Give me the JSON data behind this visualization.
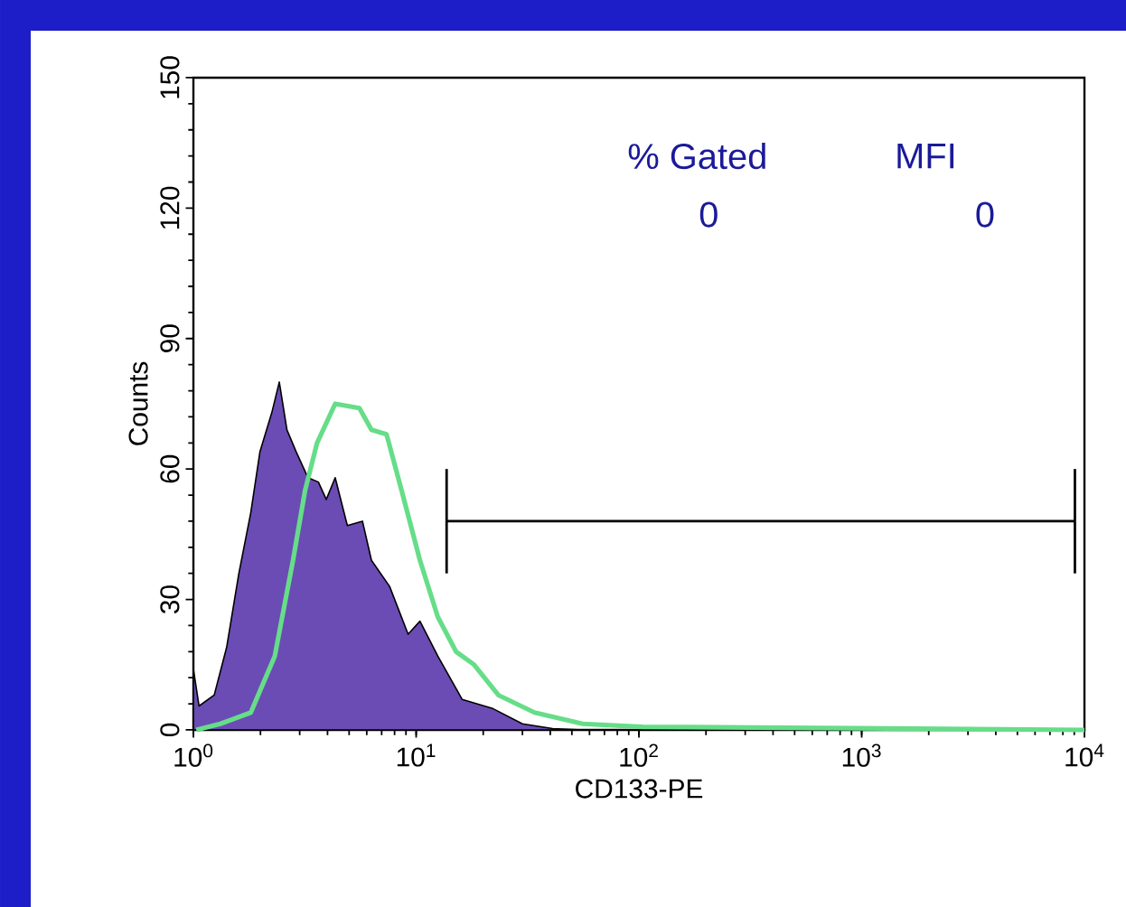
{
  "chart_data": {
    "type": "line",
    "xlabel": "CD133-PE",
    "ylabel": "Counts",
    "log": "x",
    "xlim": [
      1,
      10000
    ],
    "ylim": [
      0,
      150
    ],
    "xticks": [
      {
        "value": 1,
        "label": "10$^{0}$"
      },
      {
        "value": 10,
        "label": "10$^{1}$"
      },
      {
        "value": 100,
        "label": "10$^{2}$"
      },
      {
        "value": 1000,
        "label": "10$^{3}$"
      },
      {
        "value": 10000,
        "label": "10$^{4}$"
      }
    ],
    "yticks": [
      0,
      30,
      60,
      90,
      120,
      150
    ],
    "grid": false,
    "marker": "none",
    "annotations": [
      "% Gated",
      "MFI",
      "0",
      "0"
    ],
    "series": [
      {
        "type": "area",
        "color": "#6a4cb4",
        "x": [
          1.0,
          1.06,
          1.24,
          1.41,
          1.6,
          1.81,
          1.99,
          2.25,
          2.43,
          2.63,
          2.89,
          3.27,
          3.64,
          3.95,
          4.33,
          4.91,
          5.74,
          6.3,
          7.6,
          9.2,
          10.4,
          12.5,
          16.1,
          21.9,
          30,
          41,
          56
        ],
        "values": [
          14,
          5.5,
          8,
          19,
          36,
          50,
          64,
          73,
          80,
          69,
          64,
          58,
          57,
          53,
          58,
          47,
          48,
          39,
          33,
          22,
          25,
          17,
          7,
          5,
          1.4,
          0.3,
          0
        ]
      },
      {
        "color": "#66dd88",
        "x": [
          1.03,
          1.32,
          1.81,
          2.32,
          2.8,
          3.17,
          3.59,
          4.33,
          5.56,
          6.3,
          7.36,
          8.61,
          10.4,
          12.5,
          15.1,
          18.2,
          23.4,
          34,
          56,
          104,
          10000
        ],
        "values": [
          0,
          1.4,
          4,
          17,
          39,
          55,
          66,
          75,
          74,
          69,
          68,
          55,
          39,
          26,
          18,
          15,
          8,
          4,
          1.4,
          0.7,
          0
        ]
      },
      {
        "color": "#000000",
        "x": [
          13.7,
          9060
        ],
        "values": [
          48,
          48
        ],
        "errors": [
          12,
          12
        ]
      }
    ]
  }
}
